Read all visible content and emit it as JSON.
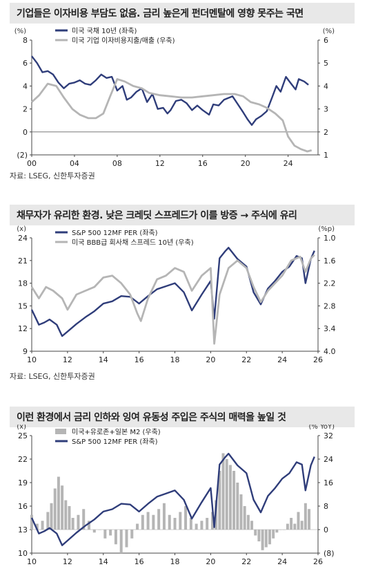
{
  "charts": [
    {
      "title": "기업들은 이자비용 부담도 없음. 금리 높은게 펀더멘탈에 영향 못주는 국면",
      "source": "자료: LSEG, 신한투자증권",
      "left_unit": "(%)",
      "right_unit": "(%)",
      "legend": [
        "미국 국채 10년 (좌축)",
        "미국 기업 이자비용지출/매출 (우축)"
      ]
    },
    {
      "title": "채무자가 유리한 환경. 낮은 크레딧 스프레드가 이를 방증 → 주식에 유리",
      "source": "자료: LSEG, 신한투자증권",
      "left_unit": "(x)",
      "right_unit": "(%p)",
      "legend": [
        "S&P 500 12MF PER (좌축)",
        "미국 BBB급 회사채 스프레드 10년 (우축)"
      ]
    },
    {
      "title": "이런 환경에서 금리 인하와 잉여 유동성 주입은 주식의 매력을 높일 것",
      "left_unit": "(x)",
      "right_unit": "(% YoY)",
      "legend": [
        "미국+유로존+일본 M2 (우축)",
        "S&P 500 12MF PER (좌축)"
      ]
    }
  ],
  "chart_data": [
    {
      "type": "line",
      "title": "기업들은 이자비용 부담도 없음. 금리 높은게 펀더멘탈에 영향 못주는 국면",
      "x_ticks": [
        "00",
        "04",
        "08",
        "12",
        "16",
        "20",
        "24"
      ],
      "x_range": [
        2000,
        2026.8
      ],
      "left_axis": {
        "label": "(%)",
        "ticks": [
          "8",
          "6",
          "4",
          "2",
          "0",
          "(2)"
        ],
        "range": [
          -2,
          8
        ]
      },
      "right_axis": {
        "label": "(%)",
        "ticks": [
          "6",
          "5",
          "4",
          "3",
          "2",
          "1"
        ],
        "range": [
          1,
          6
        ]
      },
      "series": [
        {
          "name": "미국 국채 10년 (좌축)",
          "axis": "left",
          "color": "#2f3d7a",
          "x": [
            2000.0,
            2000.5,
            2001.0,
            2001.5,
            2002.0,
            2002.5,
            2003.0,
            2003.5,
            2004.0,
            2004.5,
            2005.0,
            2005.5,
            2006.0,
            2006.5,
            2007.0,
            2007.5,
            2008.0,
            2008.5,
            2008.9,
            2009.3,
            2009.8,
            2010.3,
            2010.8,
            2011.3,
            2011.8,
            2012.3,
            2012.7,
            2013.0,
            2013.5,
            2014.0,
            2014.5,
            2015.0,
            2015.5,
            2016.0,
            2016.6,
            2017.0,
            2017.5,
            2018.0,
            2018.8,
            2019.3,
            2019.8,
            2020.2,
            2020.6,
            2021.0,
            2021.5,
            2022.0,
            2022.5,
            2022.9,
            2023.3,
            2023.8,
            2024.2,
            2024.7,
            2025.0,
            2025.5,
            2025.9
          ],
          "y": [
            6.6,
            6.0,
            5.2,
            5.3,
            5.0,
            4.3,
            3.8,
            4.2,
            4.3,
            4.5,
            4.2,
            4.1,
            4.5,
            5.0,
            4.7,
            4.8,
            3.6,
            4.0,
            2.8,
            3.0,
            3.5,
            3.8,
            2.6,
            3.3,
            2.0,
            2.1,
            1.6,
            1.9,
            2.7,
            2.8,
            2.5,
            1.9,
            2.3,
            1.9,
            1.5,
            2.4,
            2.3,
            2.8,
            3.1,
            2.4,
            1.7,
            1.1,
            0.6,
            1.1,
            1.4,
            1.8,
            3.0,
            4.0,
            3.5,
            4.8,
            4.3,
            3.7,
            4.6,
            4.4,
            4.1
          ]
        },
        {
          "name": "미국 기업 이자비용지출/매출 (우축)",
          "axis": "right",
          "color": "#b5b5b5",
          "x": [
            2000.0,
            2000.7,
            2001.5,
            2002.3,
            2003.0,
            2003.8,
            2004.5,
            2005.3,
            2006.0,
            2006.7,
            2007.3,
            2008.0,
            2008.7,
            2009.5,
            2010.3,
            2011.0,
            2012.0,
            2013.0,
            2014.0,
            2015.0,
            2016.0,
            2017.0,
            2018.0,
            2019.0,
            2019.8,
            2020.5,
            2021.3,
            2022.0,
            2022.8,
            2023.5,
            2024.0,
            2024.6,
            2025.2,
            2025.8,
            2026.2
          ],
          "y": [
            3.3,
            3.6,
            4.1,
            4.0,
            3.5,
            3.0,
            2.75,
            2.6,
            2.6,
            2.8,
            3.5,
            4.3,
            4.2,
            4.0,
            3.9,
            3.7,
            3.6,
            3.55,
            3.5,
            3.5,
            3.55,
            3.6,
            3.65,
            3.65,
            3.55,
            3.3,
            3.2,
            3.05,
            2.8,
            2.5,
            1.8,
            1.4,
            1.25,
            1.15,
            1.2
          ]
        }
      ]
    },
    {
      "type": "line",
      "title": "채무자가 유리한 환경. 낮은 크레딧 스프레드가 이를 방증 → 주식에 유리",
      "x_ticks": [
        "10",
        "12",
        "14",
        "16",
        "18",
        "20",
        "22",
        "24",
        "26"
      ],
      "x_range": [
        2010,
        2026
      ],
      "left_axis": {
        "label": "(x)",
        "ticks": [
          "24",
          "21",
          "18",
          "15",
          "12",
          "9"
        ],
        "range": [
          9,
          24
        ]
      },
      "right_axis": {
        "label": "(%p)",
        "ticks": [
          "1.0",
          "1.6",
          "2.2",
          "2.8",
          "3.4",
          "4.0"
        ],
        "range": [
          1.0,
          4.0
        ],
        "inverted": true
      },
      "series": [
        {
          "name": "S&P 500 12MF PER (좌축)",
          "axis": "left",
          "color": "#2f3d7a",
          "x": [
            2010.0,
            2010.4,
            2010.7,
            2011.0,
            2011.4,
            2011.7,
            2012.0,
            2012.5,
            2013.0,
            2013.5,
            2014.0,
            2014.5,
            2015.0,
            2015.5,
            2016.0,
            2016.5,
            2017.0,
            2017.5,
            2018.0,
            2018.5,
            2018.95,
            2019.5,
            2020.0,
            2020.2,
            2020.5,
            2020.8,
            2021.0,
            2021.5,
            2022.0,
            2022.4,
            2022.8,
            2023.2,
            2023.6,
            2024.0,
            2024.4,
            2024.8,
            2025.1,
            2025.3,
            2025.6,
            2025.8
          ],
          "y": [
            14.5,
            12.5,
            12.8,
            13.2,
            12.5,
            11.0,
            11.6,
            12.6,
            13.5,
            14.3,
            15.3,
            15.6,
            16.3,
            16.2,
            15.3,
            16.3,
            17.2,
            17.6,
            18.0,
            16.8,
            14.4,
            16.5,
            18.3,
            13.3,
            21.3,
            22.2,
            22.7,
            21.2,
            20.2,
            16.8,
            15.2,
            17.3,
            18.3,
            19.5,
            20.2,
            21.6,
            21.3,
            18.0,
            21.2,
            22.3
          ]
        },
        {
          "name": "미국 BBB급 회사채 스프레드 10년 (우축)",
          "axis": "right",
          "color": "#b5b5b5",
          "x": [
            2010.0,
            2010.4,
            2010.8,
            2011.2,
            2011.7,
            2012.0,
            2012.5,
            2013.0,
            2013.5,
            2014.0,
            2014.5,
            2015.0,
            2015.5,
            2015.9,
            2016.1,
            2016.5,
            2017.0,
            2017.5,
            2018.0,
            2018.5,
            2018.95,
            2019.5,
            2020.0,
            2020.2,
            2020.5,
            2021.0,
            2021.5,
            2022.0,
            2022.4,
            2022.8,
            2023.2,
            2023.6,
            2024.0,
            2024.5,
            2025.0,
            2025.3,
            2025.6,
            2025.8
          ],
          "y": [
            2.3,
            2.6,
            2.3,
            2.4,
            2.6,
            2.9,
            2.5,
            2.4,
            2.3,
            2.05,
            2.0,
            2.2,
            2.5,
            3.0,
            3.2,
            2.6,
            2.1,
            2.0,
            1.8,
            1.9,
            2.4,
            2.0,
            1.8,
            3.8,
            2.5,
            1.8,
            1.6,
            1.8,
            2.3,
            2.7,
            2.4,
            2.2,
            2.0,
            1.6,
            1.5,
            1.9,
            1.55,
            1.45
          ]
        }
      ]
    },
    {
      "type": "line",
      "title": "이런 환경에서 금리 인하와 잉여 유동성 주입은 주식의 매력을 높일 것",
      "x_ticks": [
        "10",
        "12",
        "14",
        "16",
        "18",
        "20",
        "22",
        "24",
        "26"
      ],
      "x_range": [
        2010,
        2026
      ],
      "left_axis": {
        "label": "(x)",
        "ticks": [
          "25",
          "22",
          "19",
          "16",
          "13",
          "10"
        ],
        "range": [
          10,
          25
        ]
      },
      "right_axis": {
        "label": "(% YoY)",
        "ticks": [
          "32",
          "24",
          "16",
          "8",
          "0",
          "(8)"
        ],
        "range": [
          -8,
          32
        ]
      },
      "series": [
        {
          "name": "미국+유로존+일본 M2 (우축)",
          "axis": "right",
          "color": "#b5b5b5",
          "kind": "bar",
          "x": [
            2010.0,
            2010.3,
            2010.6,
            2010.9,
            2011.1,
            2011.3,
            2011.5,
            2011.7,
            2011.9,
            2012.1,
            2012.3,
            2012.6,
            2012.9,
            2013.2,
            2013.5,
            2013.8,
            2014.1,
            2014.4,
            2014.7,
            2015.0,
            2015.3,
            2015.6,
            2015.9,
            2016.2,
            2016.5,
            2016.8,
            2017.1,
            2017.4,
            2017.7,
            2018.0,
            2018.3,
            2018.6,
            2018.9,
            2019.2,
            2019.5,
            2019.8,
            2020.1,
            2020.3,
            2020.5,
            2020.7,
            2020.9,
            2021.1,
            2021.3,
            2021.5,
            2021.7,
            2021.9,
            2022.1,
            2022.3,
            2022.5,
            2022.7,
            2022.9,
            2023.1,
            2023.3,
            2023.5,
            2023.7,
            2023.9,
            2024.1,
            2024.3,
            2024.5,
            2024.7,
            2024.9,
            2025.1,
            2025.3,
            2025.5
          ],
          "y": [
            5,
            2,
            3,
            6,
            9,
            14,
            18,
            15,
            10,
            8,
            4,
            5,
            7,
            3,
            -1,
            0,
            -3,
            -2,
            -5,
            -8,
            -6,
            -3,
            2,
            5,
            6,
            5,
            7,
            9,
            5,
            4,
            6,
            8,
            4,
            2,
            3,
            4,
            6,
            10,
            20,
            26,
            24,
            22,
            20,
            16,
            12,
            8,
            5,
            3,
            -2,
            -4,
            -7,
            -6,
            -5,
            -3,
            -1,
            0,
            0,
            2,
            4,
            2,
            6,
            3,
            9,
            7
          ]
        },
        {
          "name": "S&P 500 12MF PER (좌축)",
          "axis": "left",
          "color": "#2f3d7a",
          "x": [
            2010.0,
            2010.4,
            2010.7,
            2011.0,
            2011.4,
            2011.7,
            2012.0,
            2012.5,
            2013.0,
            2013.5,
            2014.0,
            2014.5,
            2015.0,
            2015.5,
            2016.0,
            2016.5,
            2017.0,
            2017.5,
            2018.0,
            2018.5,
            2018.95,
            2019.5,
            2020.0,
            2020.2,
            2020.5,
            2020.8,
            2021.0,
            2021.5,
            2022.0,
            2022.4,
            2022.8,
            2023.2,
            2023.6,
            2024.0,
            2024.4,
            2024.8,
            2025.1,
            2025.3,
            2025.6,
            2025.8
          ],
          "y": [
            14.5,
            12.5,
            12.8,
            13.2,
            12.5,
            11.0,
            11.6,
            12.6,
            13.5,
            14.3,
            15.3,
            15.6,
            16.3,
            16.2,
            15.3,
            16.3,
            17.2,
            17.6,
            18.0,
            16.8,
            14.4,
            16.5,
            18.3,
            13.3,
            21.3,
            22.2,
            22.7,
            21.2,
            20.2,
            16.8,
            15.2,
            17.3,
            18.3,
            19.5,
            20.2,
            21.6,
            21.3,
            18.0,
            21.2,
            22.3
          ]
        }
      ]
    }
  ]
}
